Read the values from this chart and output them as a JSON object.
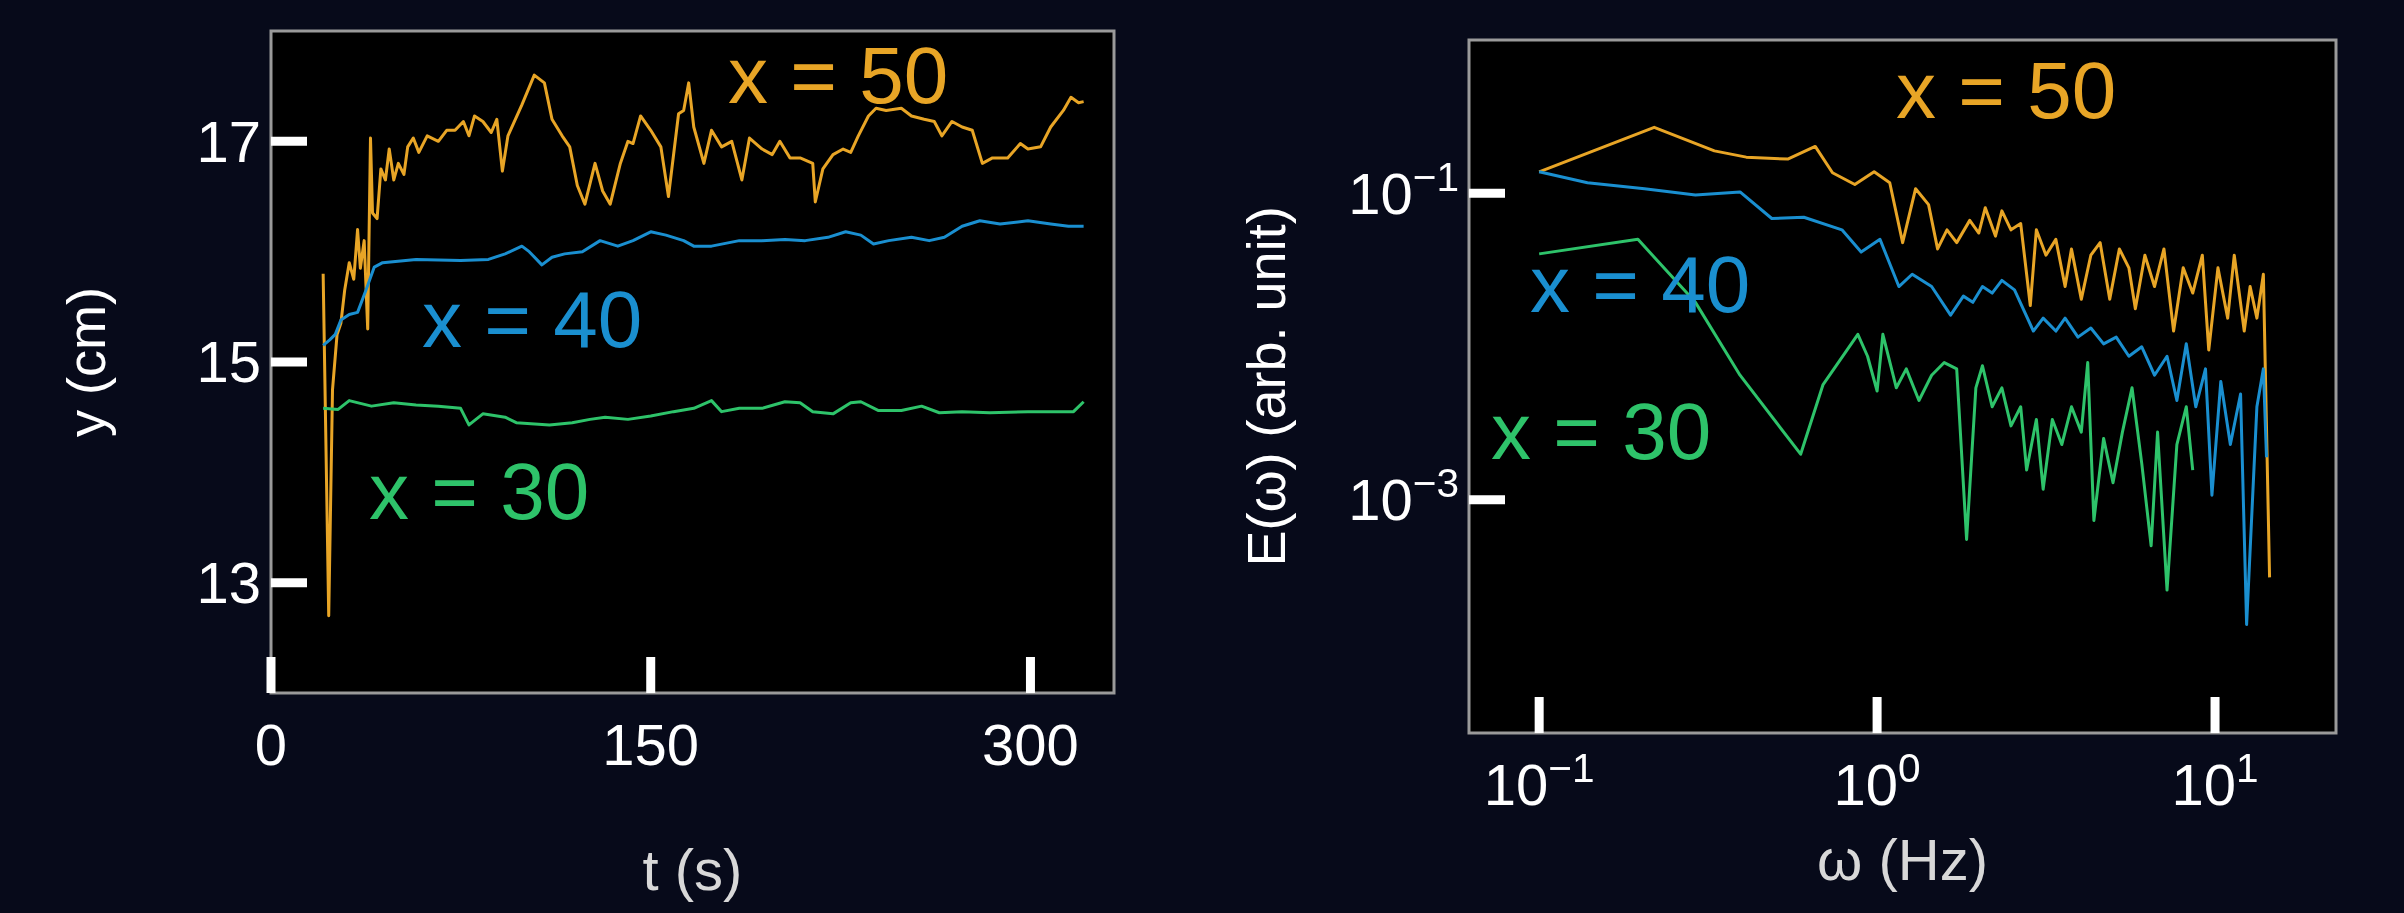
{
  "chart_data": [
    {
      "type": "line",
      "xlabel": "t (s)",
      "ylabel": "y (cm)",
      "xlim": [
        0,
        333
      ],
      "ylim": [
        12,
        18
      ],
      "xticks": [
        0,
        150,
        300
      ],
      "yticks": [
        13,
        15,
        17
      ],
      "grid": false,
      "series": [
        {
          "name": "x = 50",
          "color": "#e8a526",
          "x": [
            20.6,
            22.8,
            24.3,
            26.1,
            27.6,
            29.1,
            30.9,
            32.7,
            34.2,
            35.3,
            36.8,
            38.2,
            39.3,
            40.1,
            41.9,
            43.4,
            45.2,
            46.7,
            48.5,
            50.3,
            52.5,
            54,
            56.2,
            58.4,
            61.7,
            66.1,
            69.4,
            72.7,
            76,
            78.2,
            80.4,
            83.7,
            87,
            89.2,
            91.4,
            93.6,
            99.1,
            104,
            108,
            111,
            115,
            118,
            121,
            124,
            128,
            131,
            134,
            138,
            141,
            143,
            146,
            150,
            154,
            157,
            161,
            163,
            165,
            167,
            171,
            174,
            178,
            182,
            186,
            189,
            194,
            198,
            201,
            205,
            209,
            214,
            215,
            218,
            222,
            226,
            229,
            232,
            236,
            239,
            243,
            249,
            253,
            258,
            262,
            265,
            269,
            273,
            277,
            281,
            285,
            291,
            296,
            299,
            304,
            308,
            313,
            316,
            319,
            321
          ],
          "values": [
            15.8,
            12.7,
            14.75,
            15.25,
            15.35,
            15.65,
            15.9,
            15.75,
            16.2,
            15.85,
            16.1,
            15.3,
            17.03,
            16.35,
            16.3,
            16.75,
            16.65,
            16.93,
            16.65,
            16.8,
            16.7,
            16.95,
            17.03,
            16.9,
            17.05,
            17,
            17.1,
            17.1,
            17.18,
            17.05,
            17.23,
            17.18,
            17.08,
            17.2,
            16.73,
            17.05,
            17.33,
            17.6,
            17.53,
            17.2,
            17.05,
            16.95,
            16.6,
            16.43,
            16.8,
            16.55,
            16.43,
            16.8,
            17,
            16.98,
            17.23,
            17.1,
            16.95,
            16.5,
            17.25,
            17.28,
            17.53,
            17.13,
            16.8,
            17.1,
            16.95,
            17,
            16.65,
            17.03,
            16.93,
            16.88,
            17,
            16.85,
            16.85,
            16.8,
            16.45,
            16.75,
            16.88,
            16.93,
            16.9,
            17.05,
            17.23,
            17.3,
            17.28,
            17.3,
            17.23,
            17.2,
            17.18,
            17.05,
            17.18,
            17.13,
            17.1,
            16.8,
            16.85,
            16.85,
            16.98,
            16.93,
            16.95,
            17.13,
            17.28,
            17.4,
            17.35,
            17.36
          ]
        },
        {
          "name": "x = 40",
          "color": "#1a8fd0",
          "x": [
            20.6,
            23.2,
            25.4,
            27.6,
            30.9,
            34.2,
            37.5,
            40.8,
            44.1,
            57.3,
            74.9,
            85.9,
            92.5,
            99.1,
            102,
            107,
            111,
            116,
            123,
            130,
            137,
            143,
            150,
            156,
            163,
            167,
            174,
            185,
            194,
            203,
            211,
            220,
            227,
            233,
            238,
            244,
            253,
            260,
            266,
            273,
            280,
            288,
            299,
            308,
            315,
            321
          ],
          "values": [
            15.15,
            15.2,
            15.25,
            15.38,
            15.43,
            15.45,
            15.65,
            15.86,
            15.9,
            15.93,
            15.92,
            15.93,
            15.98,
            16.05,
            16,
            15.88,
            15.95,
            15.98,
            16,
            16.1,
            16.05,
            16.1,
            16.18,
            16.15,
            16.1,
            16.05,
            16.05,
            16.1,
            16.1,
            16.11,
            16.1,
            16.13,
            16.18,
            16.15,
            16.07,
            16.1,
            16.13,
            16.1,
            16.13,
            16.23,
            16.28,
            16.25,
            16.28,
            16.25,
            16.23,
            16.23
          ]
        },
        {
          "name": "x = 30",
          "color": "#2ec36a",
          "x": [
            20.6,
            26.5,
            30.9,
            39.7,
            48.5,
            57.3,
            66.1,
            74.9,
            78.2,
            83.7,
            92.5,
            96.9,
            110,
            119,
            126,
            132,
            141,
            150,
            159,
            167,
            174,
            178,
            185,
            194,
            203,
            209,
            214,
            222,
            229,
            233,
            240,
            249,
            257,
            264,
            273,
            284,
            299,
            317,
            321
          ],
          "values": [
            14.58,
            14.57,
            14.65,
            14.6,
            14.63,
            14.61,
            14.6,
            14.58,
            14.43,
            14.53,
            14.5,
            14.45,
            14.43,
            14.45,
            14.48,
            14.5,
            14.48,
            14.51,
            14.55,
            14.58,
            14.65,
            14.55,
            14.58,
            14.58,
            14.64,
            14.63,
            14.55,
            14.53,
            14.63,
            14.64,
            14.56,
            14.56,
            14.6,
            14.54,
            14.55,
            14.54,
            14.55,
            14.55,
            14.64
          ]
        }
      ]
    },
    {
      "type": "line",
      "xlabel": "ω (Hz)",
      "ylabel": "E(ω) (arb. unit)",
      "log": "xy",
      "xlim": [
        0.062,
        22.8
      ],
      "ylim": [
        3e-05,
        1
      ],
      "grid": false,
      "xticks": [
        {
          "value": 0.1,
          "label": "10$^{−1}$"
        },
        {
          "value": 1,
          "label": "10$^{0}$"
        },
        {
          "value": 10,
          "label": "10$^{1}$"
        }
      ],
      "yticks": [
        {
          "value": 0.1,
          "label": "10$^{−1}$"
        },
        {
          "value": 0.001,
          "label": "10$^{−3}$"
        }
      ],
      "series": [
        {
          "name": "x = 50",
          "color": "#e8a526",
          "x": [
            0.1,
            0.219,
            0.33,
            0.41,
            0.544,
            0.656,
            0.738,
            0.859,
            0.98,
            1.09,
            1.19,
            1.3,
            1.42,
            1.51,
            1.61,
            1.72,
            1.88,
            2,
            2.09,
            2.24,
            2.34,
            2.49,
            2.66,
            2.84,
            2.96,
            3.16,
            3.38,
            3.6,
            3.76,
            4.02,
            4.29,
            4.57,
            4.88,
            5.21,
            5.56,
            5.81,
            6.2,
            6.62,
            7.06,
            7.54,
            8.05,
            8.59,
            9.17,
            9.58,
            10.2,
            10.9,
            11.4,
            12.2,
            12.7,
            13.3,
            13.9,
            14.5
          ],
          "values": [
            0.138,
            0.269,
            0.189,
            0.172,
            0.167,
            0.202,
            0.136,
            0.114,
            0.138,
            0.117,
            0.0476,
            0.107,
            0.0843,
            0.0433,
            0.0577,
            0.0476,
            0.0665,
            0.055,
            0.0804,
            0.0525,
            0.0767,
            0.0577,
            0.0634,
            0.0185,
            0.0577,
            0.0394,
            0.05,
            0.0246,
            0.0433,
            0.0203,
            0.0394,
            0.0476,
            0.0203,
            0.0433,
            0.0326,
            0.0176,
            0.0394,
            0.0246,
            0.0433,
            0.0126,
            0.0326,
            0.0223,
            0.0394,
            0.00948,
            0.0326,
            0.0153,
            0.0394,
            0.0126,
            0.0246,
            0.0153,
            0.0296,
            0.000311
          ]
        },
        {
          "name": "x = 40",
          "color": "#1a8fd0",
          "x": [
            0.1,
            0.139,
            0.205,
            0.29,
            0.393,
            0.488,
            0.607,
            0.787,
            0.897,
            1.02,
            1.16,
            1.27,
            1.45,
            1.65,
            1.8,
            1.92,
            2.05,
            2.19,
            2.34,
            2.55,
            2.9,
            3.1,
            3.38,
            3.6,
            3.93,
            4.29,
            4.68,
            5.1,
            5.56,
            6.07,
            6.62,
            7.21,
            7.71,
            8.22,
            8.77,
            9.37,
            9.79,
            10.4,
            11.1,
            11.9,
            12.4,
            13.3,
            13.9,
            14.2
          ],
          "values": [
            0.138,
            0.117,
            0.107,
            0.0972,
            0.102,
            0.0684,
            0.0697,
            0.0577,
            0.0413,
            0.05,
            0.0246,
            0.0296,
            0.0246,
            0.016,
            0.0213,
            0.0194,
            0.0246,
            0.0223,
            0.027,
            0.0234,
            0.0126,
            0.0153,
            0.0126,
            0.0153,
            0.0115,
            0.0132,
            0.0104,
            0.0115,
            0.00863,
            0.00995,
            0.00649,
            0.00863,
            0.00444,
            0.0104,
            0.00404,
            0.00714,
            0.00107,
            0.00591,
            0.00229,
            0.00489,
            0.000153,
            0.00404,
            0.00714,
            0.00189
          ]
        },
        {
          "name": "x = 30",
          "color": "#2ec36a",
          "x": [
            0.1,
            0.196,
            0.29,
            0.393,
            0.594,
            0.692,
            0.877,
            0.937,
            1,
            1.04,
            1.14,
            1.22,
            1.33,
            1.45,
            1.58,
            1.72,
            1.84,
            1.96,
            2.05,
            2.19,
            2.34,
            2.49,
            2.66,
            2.77,
            2.96,
            3.1,
            3.3,
            3.52,
            3.76,
            4.02,
            4.2,
            4.38,
            4.68,
            4.99,
            5.32,
            5.68,
            6.07,
            6.47,
            6.76,
            7.21,
            7.71,
            8.22,
            8.59
          ],
          "values": [
            0.0402,
            0.05,
            0.0194,
            0.00649,
            0.00198,
            0.00564,
            0.012,
            0.00863,
            0.00512,
            0.012,
            0.00537,
            0.00714,
            0.00444,
            0.00649,
            0.00785,
            0.00714,
            0.00055,
            0.00537,
            0.00748,
            0.00404,
            0.00537,
            0.00303,
            0.00404,
            0.00156,
            0.00334,
            0.00117,
            0.00334,
            0.00229,
            0.00404,
            0.00276,
            0.00785,
            0.000731,
            0.00251,
            0.00129,
            0.00276,
            0.00537,
            0.00172,
            0.0005,
            0.00276,
            0.000257,
            0.00229,
            0.00404,
            0.00156
          ]
        }
      ]
    }
  ]
}
